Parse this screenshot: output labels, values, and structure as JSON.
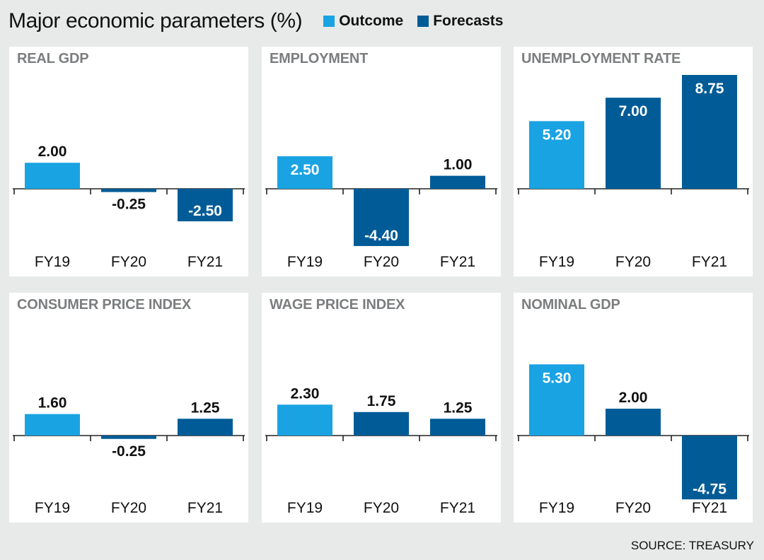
{
  "title": "Major economic parameters (%)",
  "legend": [
    {
      "label": "Outcome",
      "color": "#1aa3e2"
    },
    {
      "label": "Forecasts",
      "color": "#005b96"
    }
  ],
  "source": "SOURCE: TREASURY",
  "chart_data": [
    {
      "type": "bar",
      "title": "REAL GDP",
      "categories": [
        "FY19",
        "FY20",
        "FY21"
      ],
      "values": [
        2.0,
        -0.25,
        -2.5
      ],
      "labels": [
        "2.00",
        "-0.25",
        "-2.50"
      ],
      "series_type": [
        "Outcome",
        "Forecasts",
        "Forecasts"
      ]
    },
    {
      "type": "bar",
      "title": "EMPLOYMENT",
      "categories": [
        "FY19",
        "FY20",
        "FY21"
      ],
      "values": [
        2.5,
        -4.4,
        1.0
      ],
      "labels": [
        "2.50",
        "-4.40",
        "1.00"
      ],
      "series_type": [
        "Outcome",
        "Forecasts",
        "Forecasts"
      ]
    },
    {
      "type": "bar",
      "title": "UNEMPLOYMENT RATE",
      "categories": [
        "FY19",
        "FY20",
        "FY21"
      ],
      "values": [
        5.2,
        7.0,
        8.75
      ],
      "labels": [
        "5.20",
        "7.00",
        "8.75"
      ],
      "series_type": [
        "Outcome",
        "Forecasts",
        "Forecasts"
      ]
    },
    {
      "type": "bar",
      "title": "CONSUMER PRICE INDEX",
      "categories": [
        "FY19",
        "FY20",
        "FY21"
      ],
      "values": [
        1.6,
        -0.25,
        1.25
      ],
      "labels": [
        "1.60",
        "-0.25",
        "1.25"
      ],
      "series_type": [
        "Outcome",
        "Forecasts",
        "Forecasts"
      ]
    },
    {
      "type": "bar",
      "title": "WAGE PRICE INDEX",
      "categories": [
        "FY19",
        "FY20",
        "FY21"
      ],
      "values": [
        2.3,
        1.75,
        1.25
      ],
      "labels": [
        "2.30",
        "1.75",
        "1.25"
      ],
      "series_type": [
        "Outcome",
        "Forecasts",
        "Forecasts"
      ]
    },
    {
      "type": "bar",
      "title": "NOMINAL GDP",
      "categories": [
        "FY19",
        "FY20",
        "FY21"
      ],
      "values": [
        5.3,
        2.0,
        -4.75
      ],
      "labels": [
        "5.30",
        "2.00",
        "-4.75"
      ],
      "series_type": [
        "Outcome",
        "Forecasts",
        "Forecasts"
      ]
    }
  ]
}
